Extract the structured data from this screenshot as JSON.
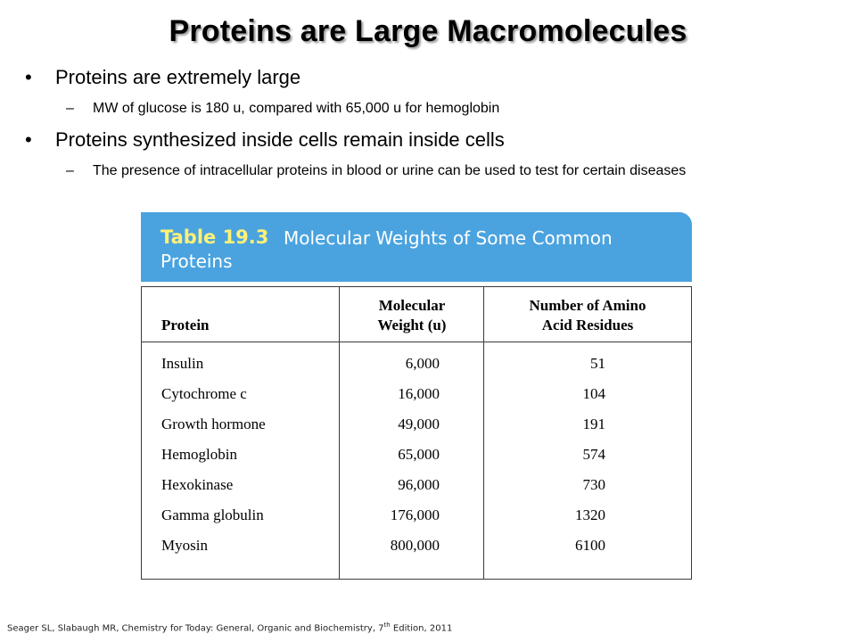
{
  "slide": {
    "title": "Proteins are Large Macromolecules",
    "bullets": [
      {
        "text": "Proteins are extremely large",
        "sub": [
          "MW of glucose is 180 u, compared with 65,000 u for hemoglobin"
        ]
      },
      {
        "text": "Proteins synthesized inside cells remain inside cells",
        "sub": [
          "The presence of intracellular proteins in blood or urine can be used to test for certain diseases"
        ]
      }
    ],
    "bullet_glyph": "•",
    "sub_glyph": "–"
  },
  "table": {
    "number": "Table 19.3",
    "caption": "Molecular Weights of Some Common Proteins",
    "header_color": "#4aa3df",
    "number_color": "#fff176",
    "columns": [
      "Protein",
      "Molecular Weight (u)",
      "Number of Amino Acid Residues"
    ],
    "column_lines": [
      [
        "Protein"
      ],
      [
        "Molecular",
        "Weight (u)"
      ],
      [
        "Number of Amino",
        "Acid Residues"
      ]
    ],
    "rows": [
      [
        "Insulin",
        "6,000",
        "51"
      ],
      [
        "Cytochrome c",
        "16,000",
        "104"
      ],
      [
        "Growth hormone",
        "49,000",
        "191"
      ],
      [
        "Hemoglobin",
        "65,000",
        "574"
      ],
      [
        "Hexokinase",
        "96,000",
        "730"
      ],
      [
        "Gamma globulin",
        "176,000",
        "1320"
      ],
      [
        "Myosin",
        "800,000",
        "6100"
      ]
    ]
  },
  "footer": {
    "before_sup": "Seager SL, Slabaugh MR, Chemistry for Today: General, Organic and Biochemistry, 7",
    "sup": "th",
    "after_sup": " Edition, 2011"
  }
}
